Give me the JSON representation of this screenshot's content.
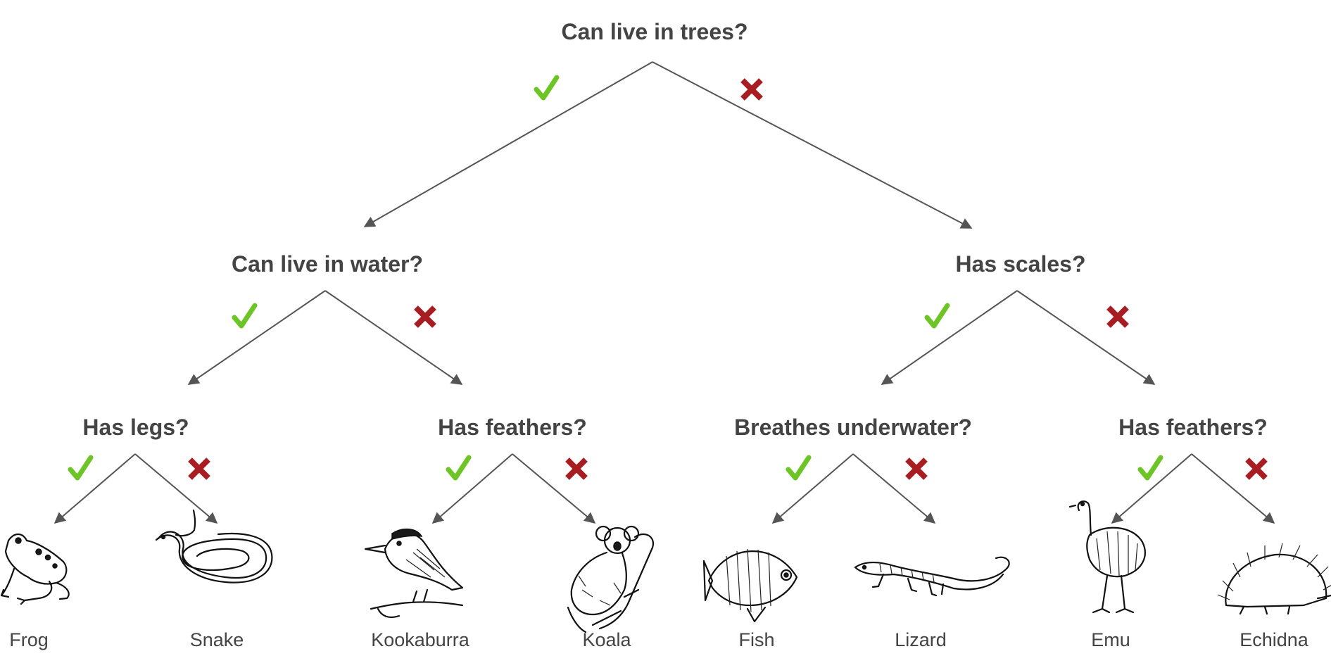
{
  "colors": {
    "yes": "#6cc524",
    "no": "#a71d22",
    "text": "#444444",
    "edge": "#555555"
  },
  "root": "Can live in trees?",
  "level2": {
    "left": "Can live in water?",
    "right": "Has scales?"
  },
  "level3": {
    "q1": "Has legs?",
    "q2": "Has feathers?",
    "q3": "Breathes underwater?",
    "q4": "Has feathers?"
  },
  "leaves": [
    "Frog",
    "Snake",
    "Kookaburra",
    "Koala",
    "Fish",
    "Lizard",
    "Emu",
    "Echidna"
  ],
  "icons": {
    "yes": "check-mark-icon",
    "no": "cross-mark-icon",
    "leaves": [
      "frog-illustration",
      "snake-illustration",
      "kookaburra-illustration",
      "koala-illustration",
      "fish-illustration",
      "lizard-illustration",
      "emu-illustration",
      "echidna-illustration"
    ]
  }
}
